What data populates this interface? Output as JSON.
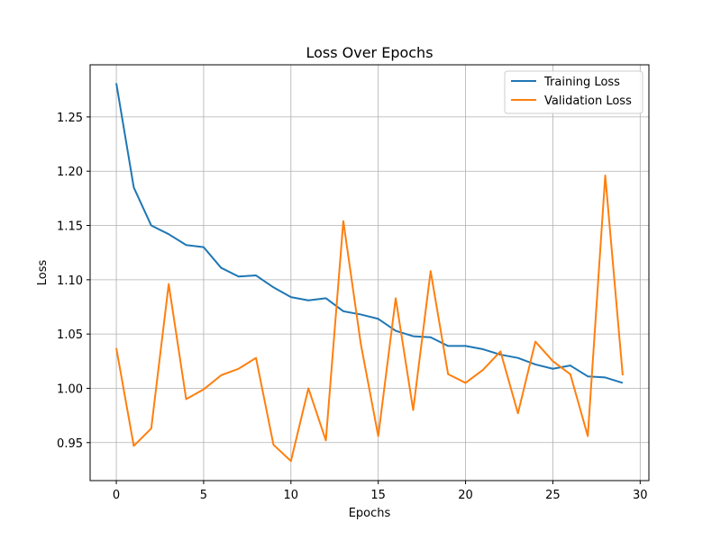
{
  "chart_data": {
    "type": "line",
    "title": "Loss Over Epochs",
    "xlabel": "Epochs",
    "ylabel": "Loss",
    "xlim": [
      -1.5,
      30.5
    ],
    "ylim": [
      0.915,
      1.298
    ],
    "xticks": [
      0,
      5,
      10,
      15,
      20,
      25,
      30
    ],
    "yticks": [
      0.95,
      1.0,
      1.05,
      1.1,
      1.15,
      1.2,
      1.25
    ],
    "grid": true,
    "legend_position": "upper right",
    "x": [
      0,
      1,
      2,
      3,
      4,
      5,
      6,
      7,
      8,
      9,
      10,
      11,
      12,
      13,
      14,
      15,
      16,
      17,
      18,
      19,
      20,
      21,
      22,
      23,
      24,
      25,
      26,
      27,
      28,
      29
    ],
    "series": [
      {
        "name": "Training Loss",
        "color": "#1f77b4",
        "values": [
          1.281,
          1.185,
          1.15,
          1.142,
          1.132,
          1.13,
          1.111,
          1.103,
          1.104,
          1.093,
          1.084,
          1.081,
          1.083,
          1.071,
          1.068,
          1.064,
          1.053,
          1.048,
          1.047,
          1.039,
          1.039,
          1.036,
          1.031,
          1.028,
          1.022,
          1.018,
          1.021,
          1.011,
          1.01,
          1.005
        ]
      },
      {
        "name": "Validation Loss",
        "color": "#ff7f0e",
        "values": [
          1.037,
          0.947,
          0.963,
          1.096,
          0.99,
          0.999,
          1.012,
          1.018,
          1.028,
          0.948,
          0.933,
          1.0,
          0.952,
          1.154,
          1.041,
          0.956,
          1.083,
          0.98,
          1.108,
          1.013,
          1.005,
          1.017,
          1.034,
          0.977,
          1.043,
          1.025,
          1.013,
          0.956,
          1.196,
          1.012
        ]
      }
    ]
  }
}
